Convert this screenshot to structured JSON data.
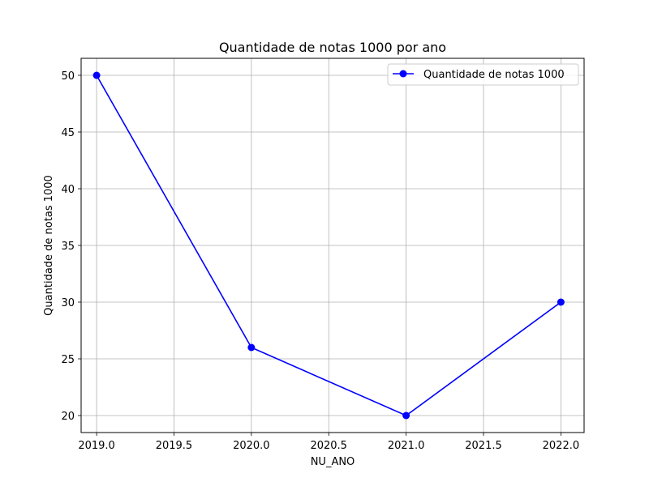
{
  "chart_data": {
    "type": "line",
    "title": "Quantidade de notas 1000 por ano",
    "xlabel": "NU_ANO",
    "ylabel": "Quantidade de notas 1000",
    "xlim": [
      2018.9,
      2022.15
    ],
    "ylim": [
      18.5,
      51.5
    ],
    "xticks": [
      2019.0,
      2019.5,
      2020.0,
      2020.5,
      2021.0,
      2021.5,
      2022.0
    ],
    "xtick_labels": [
      "2019.0",
      "2019.5",
      "2020.0",
      "2020.5",
      "2021.0",
      "2021.5",
      "2022.0"
    ],
    "yticks": [
      20,
      25,
      30,
      35,
      40,
      45,
      50
    ],
    "ytick_labels": [
      "20",
      "25",
      "30",
      "35",
      "40",
      "45",
      "50"
    ],
    "grid": true,
    "legend_position": "top-right",
    "series": [
      {
        "name": "Quantidade de notas 1000",
        "color": "#0000ff",
        "marker": "circle",
        "x": [
          2019,
          2020,
          2021,
          2022
        ],
        "y": [
          50,
          26,
          20,
          30
        ]
      }
    ]
  }
}
